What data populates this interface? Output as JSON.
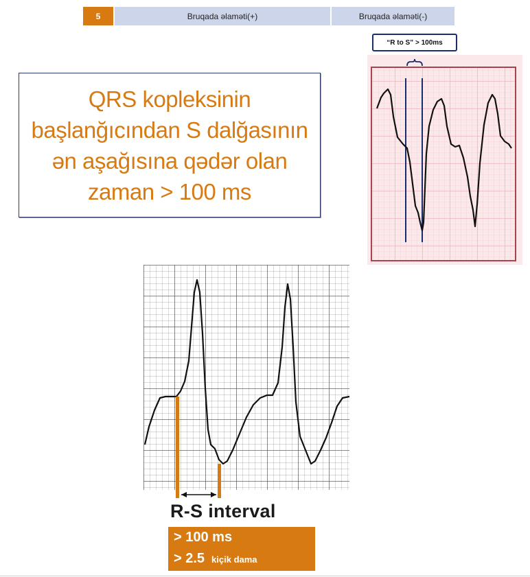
{
  "header": {
    "number": "5",
    "col_positive": "Bruqada əlaməti(+)",
    "col_negative": "Bruqada əlaməti(-)"
  },
  "description": {
    "lines": [
      "QRS kopleksinin",
      "başlanğıcından S dalğasının",
      "ən aşağısına qədər olan",
      "zaman > 100 ms"
    ]
  },
  "ecg_right": {
    "label": "“R to S” > 100ms"
  },
  "ecg_bottom": {
    "title": "R-S interval",
    "criteria_ms": "> 100 ms",
    "criteria_squares": "> 2.5",
    "squares_unit": "kiçik dama"
  },
  "colors": {
    "accent_orange": "#d87a12",
    "header_blue": "#cdd5ea",
    "navy": "#1a2d6b",
    "grid_pink": "#f0b7be"
  }
}
